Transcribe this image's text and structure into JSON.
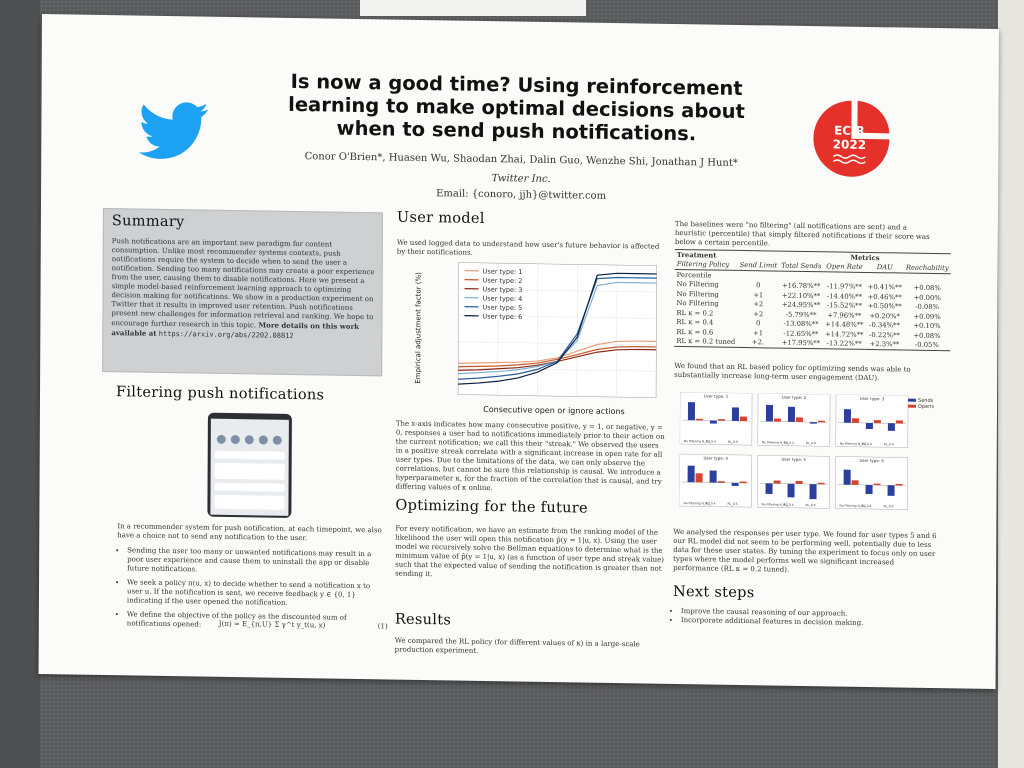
{
  "header": {
    "title": "Is now a good time? Using reinforcement learning to make optimal decisions about when to send push notifications.",
    "authors": "Conor O'Brien*, Huasen Wu, Shaodan Zhai, Dalin Guo, Wenzhe Shi, Jonathan J Hunt*",
    "affiliation": "Twitter Inc.",
    "email": "Email: {conoro, jjh}@twitter.com",
    "logo_icon": "twitter-bird-icon",
    "conference_logo_text": "ECIR 2022",
    "colors": {
      "twitter_blue": "#1da1f2",
      "ecir_red": "#e4322b"
    }
  },
  "summary": {
    "title": "Summary",
    "text": "Push notifications are an important new paradigm for content consumption. Unlike most recommender systems contexts, push notifications require the system to decide when to send the user a notification. Sending too many notifications may create a poor experience from the user, causing them to disable notifications. Here we present a simple model-based reinforcement learning approach to optimizing decision making for notifications. We show in a production experiment on Twitter that it results in improved user retention. Push notifications present new challenges for information retrieval and ranking. We hope to encourage further research in this topic.",
    "more_prefix": "More details on this work available at",
    "url": "https://arxiv.org/abs/2202.08812"
  },
  "filtering": {
    "title": "Filtering push notifications",
    "intro": "In a recommender system for push notification, at each timepoint, we also have a choice not to send any notification to the user.",
    "bullets": [
      "Sending the user too many or unwanted notifications may result in a poor user experience and cause them to uninstall the app or disable future notifications.",
      "We seek a policy π(u, x) to decide whether to send a notification x to user u. If the notification is sent, we receive feedback y ∈ {0, 1} indicating if the user opened the notification.",
      "We define the objective of the policy as the discounted sum of notifications opened:"
    ],
    "equation": "J(π) = E_{π,U} Σ γ^t y_t(u, x)",
    "equation_number": "(1)"
  },
  "user_model": {
    "title": "User model",
    "intro": "We used logged data to understand how user's future behavior is affected by their notifications.",
    "text": "The x-axis indicates how many consecutive positive, y = 1, or negative, y = 0, responses a user had to notifications immediately prior to their action on the current notification; we call this their \"streak.\" We observed the users in a positive streak correlate with a significant increase in open rate for all user types. Due to the limitations of the data, we can only observe the correlations, but cannot be sure this relationship is causal. We introduce a hyperparameter κ, for the fraction of the correlation that is causal, and try differing values of κ online."
  },
  "optimizing": {
    "title": "Optimizing for the future",
    "text": "For every notification, we have an estimate from the ranking model of the likelihood the user will open this notification p̂(y = 1|u, x). Using the user model we recursively solve the Bellman equations to determine what is the minimum value of p̂(y = 1|u, x) (as a function of user type and streak value) such that the expected value of sending the notification is greater than not sending it."
  },
  "results": {
    "title": "Results",
    "text": "We compared the RL policy (for different values of κ) in a large-scale production experiment."
  },
  "table": {
    "baselines_text": "The baselines were \"no filtering\" (all notifications are sent) and a heuristic (percentile) that simply filtered notifications if their score was below a certain percentile.",
    "group_headers": [
      "Treatment",
      "Metrics"
    ],
    "columns": [
      "Filtering Policy",
      "Send Limit",
      "Total Sends",
      "Open Rate",
      "DAU",
      "Reachability"
    ],
    "rows": [
      [
        "Percentile",
        "",
        "",
        "",
        "",
        ""
      ],
      [
        "No Filtering",
        "0",
        "+16.78%**",
        "-11.97%**",
        "+0.41%**",
        "+0.08%"
      ],
      [
        "No Filtering",
        "+1",
        "+22.10%**",
        "-14.40%**",
        "+0.46%**",
        "+0.00%"
      ],
      [
        "No Filtering",
        "+2",
        "+24.95%**",
        "-15.52%**",
        "+0.50%**",
        "-0.08%"
      ],
      [
        "RL κ = 0.2",
        "+2",
        "-5.79%**",
        "+7.96%**",
        "+0.20%*",
        "+0.09%"
      ],
      [
        "RL κ = 0.4",
        "0",
        "-13.08%**",
        "+14.48%**",
        "-0.34%**",
        "+0.10%"
      ],
      [
        "RL κ = 0.6",
        "+1",
        "-12.65%**",
        "+14.72%**",
        "-0.22%**",
        "+0.08%"
      ],
      [
        "RL κ = 0.2 tuned",
        "+2.",
        "+17.95%**",
        "-13.22%**",
        "+2.3%**",
        "-0.05%"
      ]
    ],
    "found_text": "We found that an RL based policy for optimizing sends was able to substantially increase long-term user engagement (DAU)."
  },
  "analysis": {
    "text": "We analysed the responses per user type. We found for user types 5 and 6 our RL model did not seem to be performing well, potentially due to less data for these user states. By tuning the experiment to focus only on user types where the model performs well we significant increased performance (RL κ = 0.2 tuned)."
  },
  "next_steps": {
    "title": "Next steps",
    "items": [
      "Improve the causal reasoning of our approach.",
      "Incorporate additional features in decision making."
    ]
  },
  "chart_data": [
    {
      "type": "line",
      "xlabel": "Consecutive open or ignore actions",
      "ylabel": "Empirical adjustment factor (%)",
      "x": [
        -10,
        -8,
        -6,
        -4,
        -2,
        0,
        2,
        4,
        6,
        8,
        10
      ],
      "series": [
        {
          "name": "User type: 1",
          "color": "#e8a07a",
          "values": [
            0.85,
            0.86,
            0.87,
            0.88,
            0.9,
            0.95,
            1.05,
            1.15,
            1.2,
            1.21,
            1.21
          ]
        },
        {
          "name": "User type: 2",
          "color": "#c8582a",
          "values": [
            0.8,
            0.81,
            0.82,
            0.84,
            0.87,
            0.93,
            1.0,
            1.08,
            1.12,
            1.13,
            1.13
          ]
        },
        {
          "name": "User type: 3",
          "color": "#8a2a14",
          "values": [
            0.75,
            0.76,
            0.78,
            0.8,
            0.84,
            0.9,
            0.97,
            1.04,
            1.08,
            1.09,
            1.09
          ]
        },
        {
          "name": "User type: 4",
          "color": "#7fb0d8",
          "values": [
            0.7,
            0.72,
            0.74,
            0.77,
            0.82,
            0.9,
            1.2,
            2.0,
            2.05,
            2.05,
            2.05
          ]
        },
        {
          "name": "User type: 5",
          "color": "#2a5fa0",
          "values": [
            0.62,
            0.64,
            0.67,
            0.71,
            0.78,
            0.9,
            1.3,
            2.1,
            2.12,
            2.12,
            2.12
          ]
        },
        {
          "name": "User type: 6",
          "color": "#0d1f40",
          "values": [
            0.55,
            0.57,
            0.6,
            0.65,
            0.74,
            0.88,
            1.25,
            2.15,
            2.18,
            2.18,
            2.18
          ]
        }
      ]
    },
    {
      "type": "bar",
      "categories": [
        "No Filtering N_0.2",
        "RL_0.4",
        "RL_0.6"
      ],
      "legend": [
        "Sends",
        "Opens"
      ],
      "colors": [
        "#2b3f9e",
        "#d6442e"
      ],
      "panels": [
        {
          "title": "User type: 1",
          "sends": [
            0.6,
            -0.1,
            0.45
          ],
          "opens": [
            0.05,
            0.05,
            0.15
          ]
        },
        {
          "title": "User type: 2",
          "sends": [
            0.55,
            0.5,
            -0.05
          ],
          "opens": [
            0.1,
            0.15,
            0.05
          ]
        },
        {
          "title": "User type: 3",
          "sends": [
            0.45,
            -0.2,
            -0.25
          ],
          "opens": [
            0.15,
            0.1,
            0.1
          ]
        },
        {
          "title": "User type: 4",
          "sends": [
            0.55,
            0.4,
            -0.1
          ],
          "opens": [
            0.3,
            0.05,
            0.05
          ]
        },
        {
          "title": "User type: 5",
          "sends": [
            -0.35,
            -0.45,
            -0.5
          ],
          "opens": [
            0.1,
            0.1,
            0.05
          ]
        },
        {
          "title": "User type: 6",
          "sends": [
            0.5,
            -0.3,
            -0.35
          ],
          "opens": [
            0.15,
            0.05,
            0.05
          ]
        }
      ]
    }
  ]
}
